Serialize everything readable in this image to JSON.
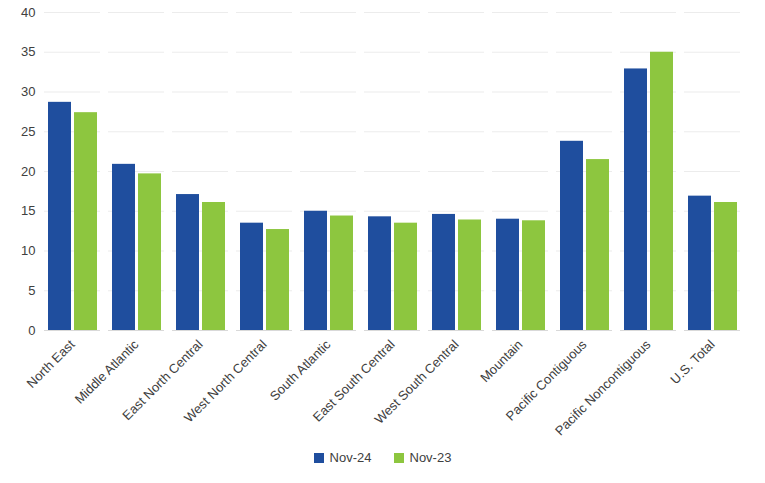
{
  "chart_data": {
    "type": "bar",
    "categories": [
      "North East",
      "Middle Atlantic",
      "East North Central",
      "West North Central",
      "South Atlantic",
      "East South Central",
      "West South Central",
      "Mountain",
      "Pacific Contiguous",
      "Pacific Noncontiguous",
      "U.S. Total"
    ],
    "series": [
      {
        "name": "Nov-24",
        "color": "#1f4e9e",
        "values": [
          28.7,
          20.9,
          17.1,
          13.5,
          15.0,
          14.3,
          14.6,
          14.0,
          23.8,
          32.9,
          16.9
        ]
      },
      {
        "name": "Nov-23",
        "color": "#8dc63f",
        "values": [
          27.4,
          19.7,
          16.1,
          12.7,
          14.4,
          13.5,
          13.9,
          13.8,
          21.5,
          35.0,
          16.1
        ]
      }
    ],
    "ylim": [
      0,
      40
    ],
    "yticks": [
      0,
      5,
      10,
      15,
      20,
      25,
      30,
      35,
      40
    ],
    "grid": true,
    "legend": "bottom"
  }
}
